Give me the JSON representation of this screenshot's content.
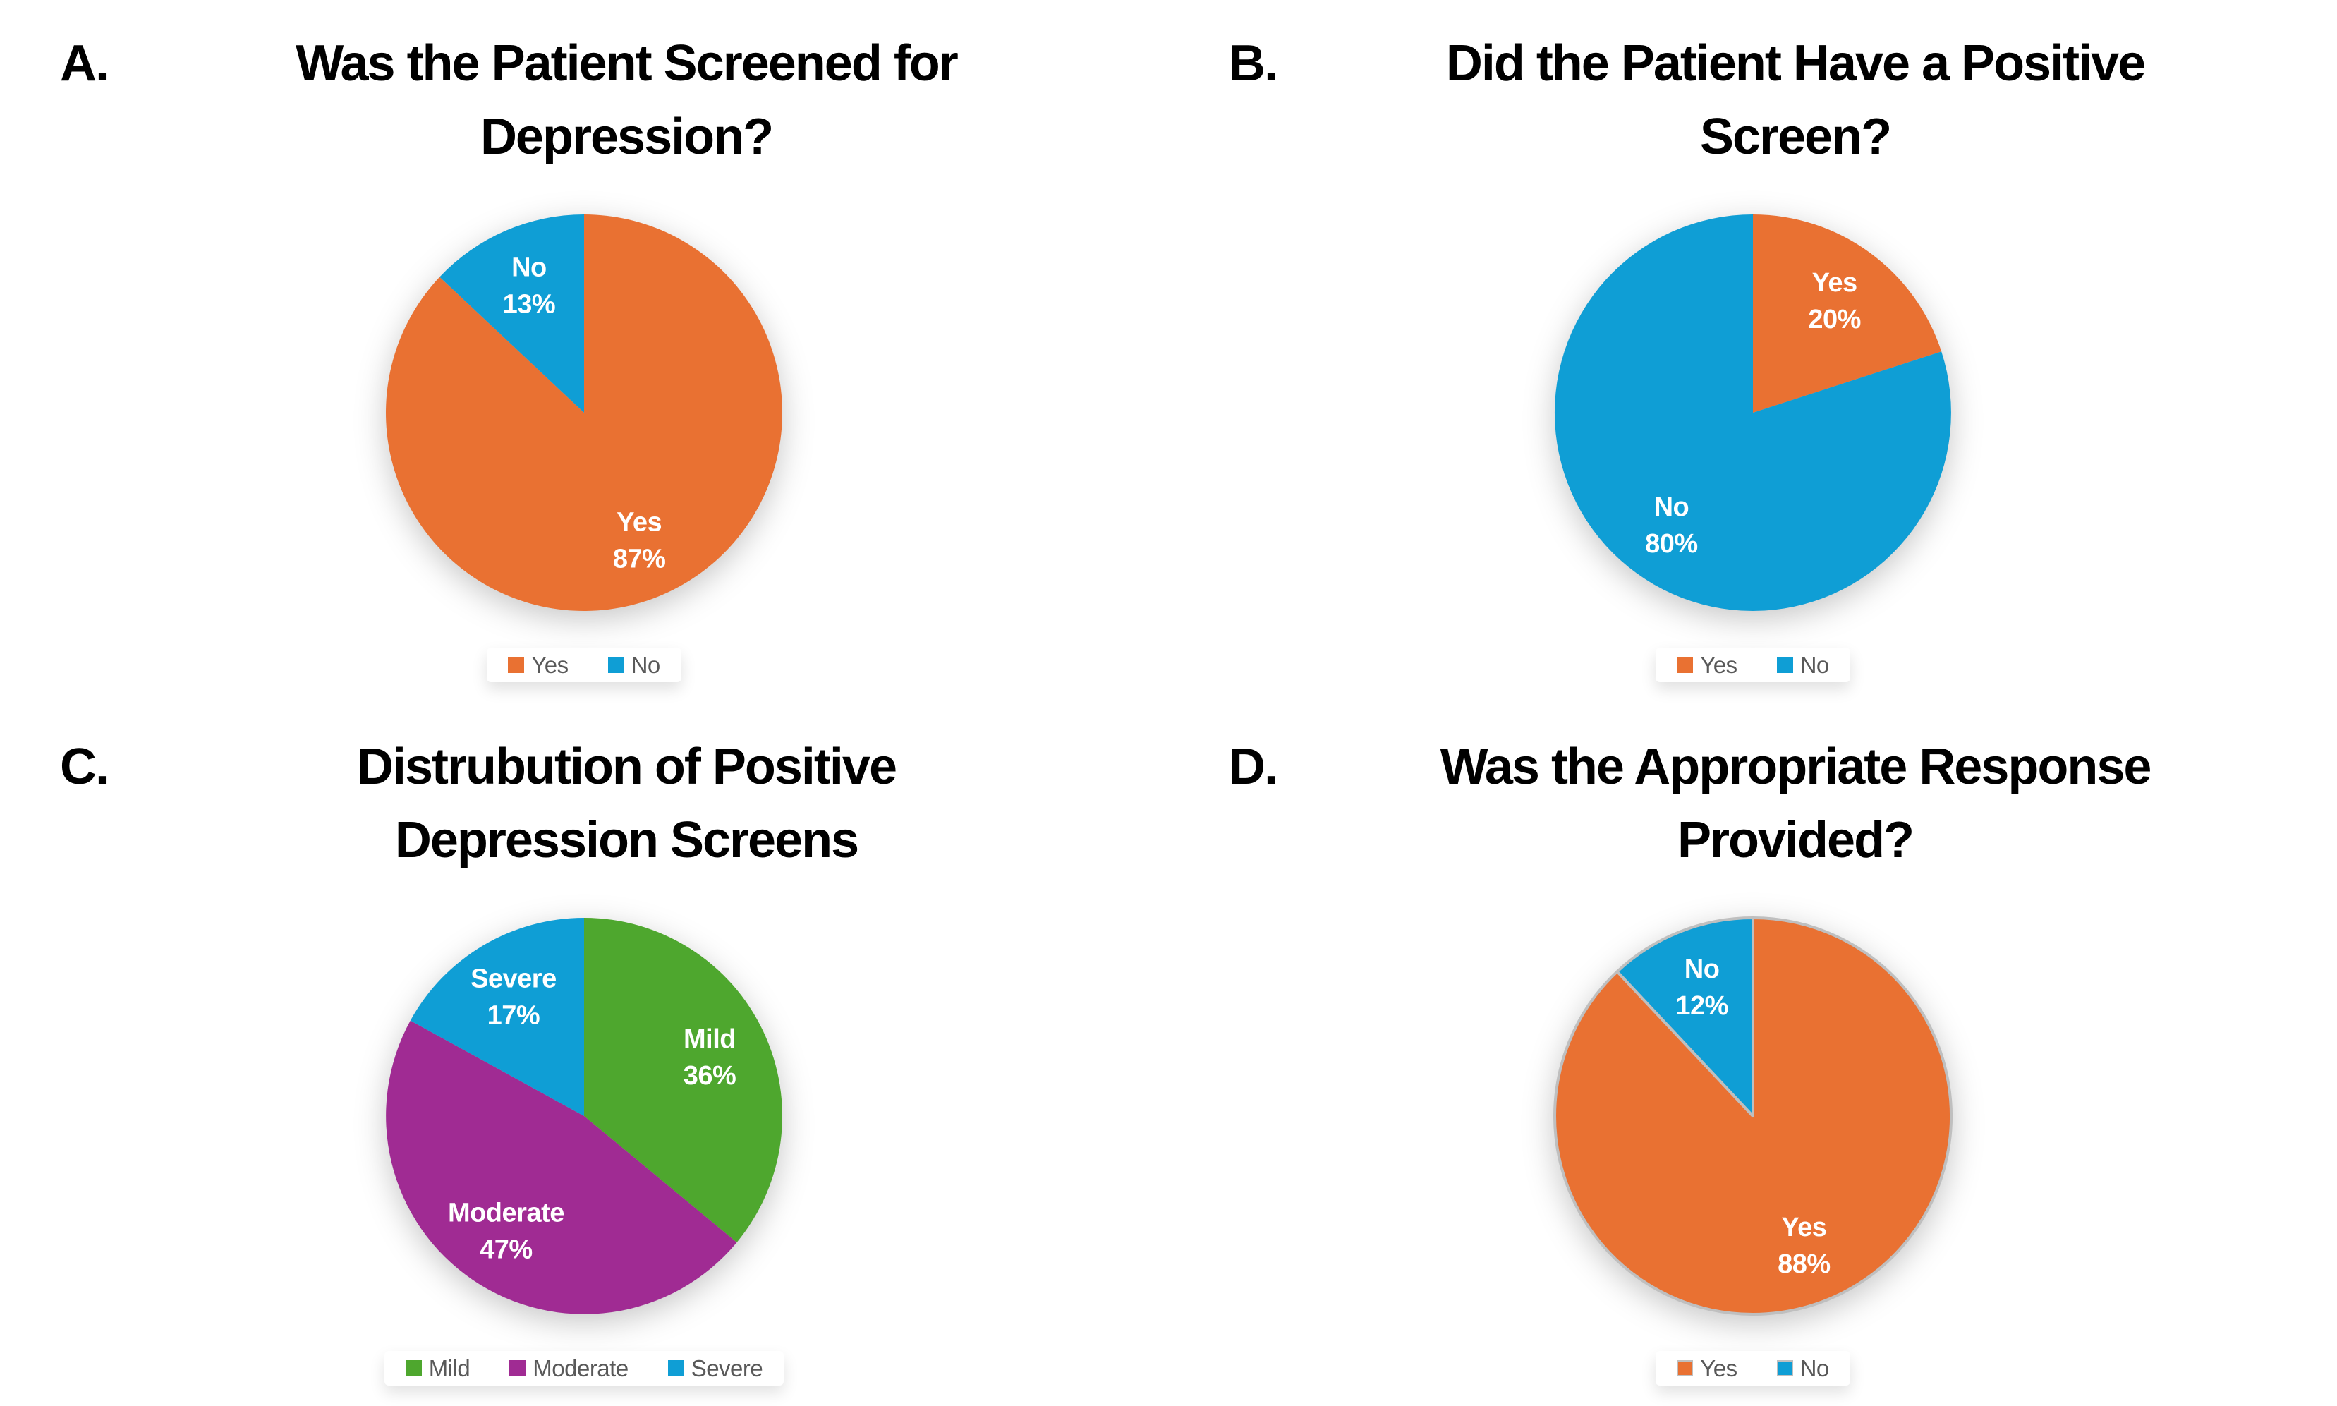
{
  "page": {
    "background": "#ffffff",
    "title_text_color": "#000000",
    "legend_text_color": "#595959",
    "data_label_color": "#ffffff"
  },
  "palette": {
    "orange": "#E97132",
    "blue": "#0F9ED5",
    "green": "#4EA72E",
    "purple": "#A02B93",
    "slice_border_gray": "#BFBFBF"
  },
  "chart_data": [
    {
      "type": "pie",
      "marker": "A.",
      "title": "Was the Patient Screened for\nDepression?",
      "categories": [
        "Yes",
        "No"
      ],
      "values": [
        87,
        13
      ],
      "pct_labels": [
        "87%",
        "13%"
      ],
      "colors": [
        "#E97132",
        "#0F9ED5"
      ],
      "slice_border": "",
      "labels": "inside",
      "legend_position": "bottom",
      "start_angle_deg": 0,
      "direction": "clockwise"
    },
    {
      "type": "pie",
      "marker": "B.",
      "title": "Did the Patient Have a Positive\nScreen?",
      "categories": [
        "Yes",
        "No"
      ],
      "values": [
        20,
        80
      ],
      "pct_labels": [
        "20%",
        "80%"
      ],
      "colors": [
        "#E97132",
        "#0F9ED5"
      ],
      "slice_border": "",
      "labels": "inside",
      "legend_position": "bottom",
      "start_angle_deg": 0,
      "direction": "clockwise"
    },
    {
      "type": "pie",
      "marker": "C.",
      "title": "Distrubution of Positive\nDepression Screens",
      "categories": [
        "Mild",
        "Moderate",
        "Severe"
      ],
      "values": [
        36,
        47,
        17
      ],
      "pct_labels": [
        "36%",
        "47%",
        "17%"
      ],
      "colors": [
        "#4EA72E",
        "#A02B93",
        "#0F9ED5"
      ],
      "slice_border": "",
      "labels": "inside",
      "legend_position": "bottom",
      "start_angle_deg": 0,
      "direction": "clockwise"
    },
    {
      "type": "pie",
      "marker": "D.",
      "title": "Was the Appropriate Response\nProvided?",
      "categories": [
        "Yes",
        "No"
      ],
      "values": [
        88,
        12
      ],
      "pct_labels": [
        "88%",
        "12%"
      ],
      "colors": [
        "#E97132",
        "#0F9ED5"
      ],
      "slice_border": "#BFBFBF",
      "labels": "inside",
      "legend_position": "bottom",
      "start_angle_deg": 0,
      "direction": "clockwise"
    }
  ]
}
